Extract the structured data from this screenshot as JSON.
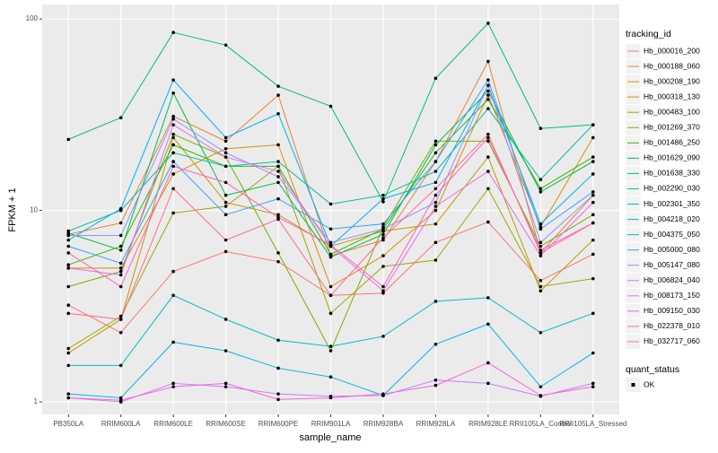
{
  "chart_data": {
    "type": "line",
    "x_label": "sample_name",
    "y_label": "FPKM + 1",
    "categories": [
      "PB350LA",
      "RRIM600LA",
      "RRIM600LE",
      "RRIM600SE",
      "RRIM600PE",
      "RRIM901LA",
      "RRIM928BA",
      "RRIM928LA",
      "RRIM928LE",
      "RRII105LA_Control",
      "RRII105LA_Stressed"
    ],
    "log_scale": true,
    "ylim": [
      0.86,
      119
    ],
    "yticks": [
      1,
      10,
      100
    ],
    "grid": true,
    "legend_title": "tracking_id",
    "legend_position": "right",
    "point_color": "#000000",
    "shape_legend": {
      "title": "quant_status",
      "labels": [
        "OK"
      ]
    },
    "series": [
      {
        "name": "Hb_000016_200",
        "color": "#F8766D",
        "values": [
          3.2,
          2.3,
          4.8,
          6.1,
          5.4,
          3.6,
          3.7,
          6.8,
          8.7,
          4.3,
          5.9
        ]
      },
      {
        "name": "Hb_000188_060",
        "color": "#EA8331",
        "values": [
          7.5,
          8.6,
          31,
          23,
          40,
          5.8,
          7.0,
          18,
          60,
          6.0,
          12
        ]
      },
      {
        "name": "Hb_000208_190",
        "color": "#D89000",
        "values": [
          5.0,
          5.0,
          15.5,
          21,
          22,
          4.0,
          5.8,
          10,
          40,
          8.2,
          24
        ]
      },
      {
        "name": "Hb_000318_130",
        "color": "#C09B00",
        "values": [
          1.8,
          2.7,
          24,
          11,
          9.5,
          6.5,
          7.8,
          8.5,
          19,
          3.8,
          7.0
        ]
      },
      {
        "name": "Hb_000483_100",
        "color": "#A3A500",
        "values": [
          1.9,
          2.8,
          9.7,
          10.5,
          17,
          2.9,
          5.1,
          5.5,
          13,
          4.0,
          4.4
        ]
      },
      {
        "name": "Hb_001269_370",
        "color": "#7CAE00",
        "values": [
          4.0,
          4.8,
          25,
          19,
          6,
          1.85,
          8.2,
          23,
          23,
          6.5,
          9.5
        ]
      },
      {
        "name": "Hb_001486_250",
        "color": "#39B600",
        "values": [
          5.2,
          6.5,
          22,
          17,
          17,
          5.9,
          8.0,
          20,
          38,
          13,
          19
        ]
      },
      {
        "name": "Hb_001629_090",
        "color": "#00BB4E",
        "values": [
          7.6,
          6.2,
          41,
          12,
          14,
          5.7,
          7.5,
          22,
          42,
          12.5,
          18
        ]
      },
      {
        "name": "Hb_001638_330",
        "color": "#00BF7D",
        "values": [
          23.5,
          30.5,
          85,
          73,
          44.5,
          35,
          11.1,
          49,
          95,
          26.8,
          28
        ]
      },
      {
        "name": "Hb_002290_030",
        "color": "#00C1A3",
        "values": [
          7.8,
          10,
          20,
          17,
          18,
          10.8,
          12,
          16,
          34,
          14.5,
          28
        ]
      },
      {
        "name": "Hb_002301_350",
        "color": "#00BFC4",
        "values": [
          1.55,
          1.55,
          3.6,
          2.7,
          2.1,
          1.95,
          2.2,
          3.35,
          3.5,
          2.3,
          2.9
        ]
      },
      {
        "name": "Hb_004218_020",
        "color": "#00BAE0",
        "values": [
          1.1,
          1.05,
          2.05,
          1.85,
          1.5,
          1.35,
          1.08,
          2.0,
          2.55,
          1.2,
          1.8
        ]
      },
      {
        "name": "Hb_004375_050",
        "color": "#00B0F6",
        "values": [
          7.0,
          10.2,
          48,
          24,
          32,
          6.5,
          11.5,
          14,
          45,
          8.5,
          15.5
        ]
      },
      {
        "name": "Hb_005000_080",
        "color": "#35A2FF",
        "values": [
          6.5,
          5.3,
          18,
          9.5,
          11.5,
          8,
          8.5,
          18,
          48,
          8.0,
          12.5
        ]
      },
      {
        "name": "Hb_005147_080",
        "color": "#9590FF",
        "values": [
          7.4,
          7.4,
          30,
          20,
          15,
          6.8,
          8.0,
          11,
          45,
          6.8,
          12
        ]
      },
      {
        "name": "Hb_006824_040",
        "color": "#C77CFF",
        "values": [
          1.05,
          1.0,
          1.25,
          1.2,
          1.1,
          1.07,
          1.08,
          1.3,
          1.25,
          1.07,
          1.25
        ]
      },
      {
        "name": "Hb_008173_150",
        "color": "#E76BF3",
        "values": [
          5.0,
          4.6,
          28,
          19,
          16,
          6.5,
          3.8,
          10.5,
          16,
          5.8,
          11
        ]
      },
      {
        "name": "Hb_009150_030",
        "color": "#FA62DB",
        "values": [
          1.05,
          1.02,
          1.2,
          1.25,
          1.03,
          1.05,
          1.1,
          1.22,
          1.6,
          1.08,
          1.2
        ]
      },
      {
        "name": "Hb_022378_010",
        "color": "#FF62BC",
        "values": [
          6.0,
          4.0,
          17,
          14,
          9.2,
          6.6,
          4.0,
          12,
          24,
          6.2,
          8.6
        ]
      },
      {
        "name": "Hb_032717_060",
        "color": "#FF6C90",
        "values": [
          2.9,
          2.7,
          13,
          7,
          9,
          3.6,
          7.2,
          13,
          25,
          6.0,
          8.6
        ]
      }
    ]
  }
}
